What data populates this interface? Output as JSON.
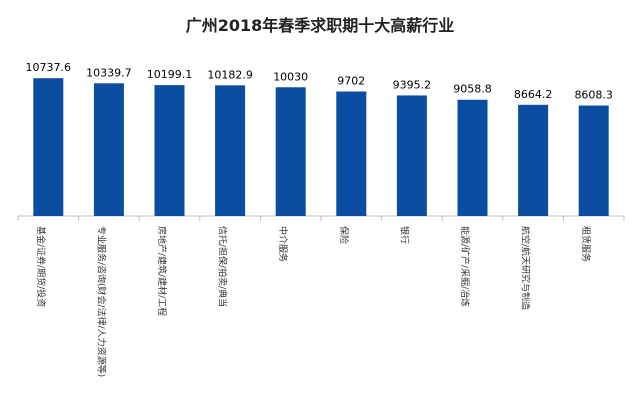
{
  "chart_data": {
    "type": "bar",
    "title": "广州2018年春季求职期十大高薪行业",
    "xlabel": "",
    "ylabel": "",
    "categories": [
      "基金/证券/期货/投资",
      "专业服务/咨询(财会/法律/人力资源等)",
      "房地产/建筑/建材/工程",
      "信托/担保/拍卖/典当",
      "中介服务",
      "保险",
      "银行",
      "能源/矿产/采掘/冶炼",
      "航空/航天研究与制造",
      "租赁服务"
    ],
    "values": [
      10737.6,
      10339.7,
      10199.1,
      10182.9,
      10030,
      9702,
      9395.2,
      9058.8,
      8664.2,
      8608.3
    ],
    "value_labels": [
      "10737.6",
      "10339.7",
      "10199.1",
      "10182.9",
      "10030",
      "9702",
      "9395.2",
      "9058.8",
      "8664.2",
      "8608.3"
    ],
    "ylim": [
      0,
      12000
    ],
    "grid": false,
    "legend": "none",
    "bar_color": "#0a4da1"
  }
}
